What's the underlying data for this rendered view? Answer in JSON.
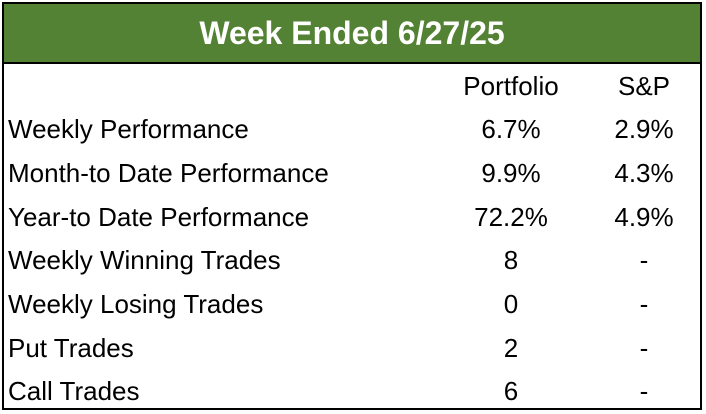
{
  "title": "Week Ended 6/27/25",
  "colors": {
    "title_background": "#548235",
    "title_text": "#ffffff"
  },
  "columns": {
    "portfolio": "Portfolio",
    "sp": "S&P"
  },
  "rows": [
    {
      "label": "Weekly Performance",
      "portfolio": "6.7%",
      "sp": "2.9%"
    },
    {
      "label": "Month-to Date Performance",
      "portfolio": "9.9%",
      "sp": "4.3%"
    },
    {
      "label": "Year-to Date Performance",
      "portfolio": "72.2%",
      "sp": "4.9%"
    },
    {
      "label": "Weekly Winning Trades",
      "portfolio": "8",
      "sp": "-"
    },
    {
      "label": "Weekly Losing Trades",
      "portfolio": "0",
      "sp": "-"
    },
    {
      "label": "Put Trades",
      "portfolio": "2",
      "sp": "-"
    },
    {
      "label": "Call Trades",
      "portfolio": "6",
      "sp": "-"
    }
  ]
}
